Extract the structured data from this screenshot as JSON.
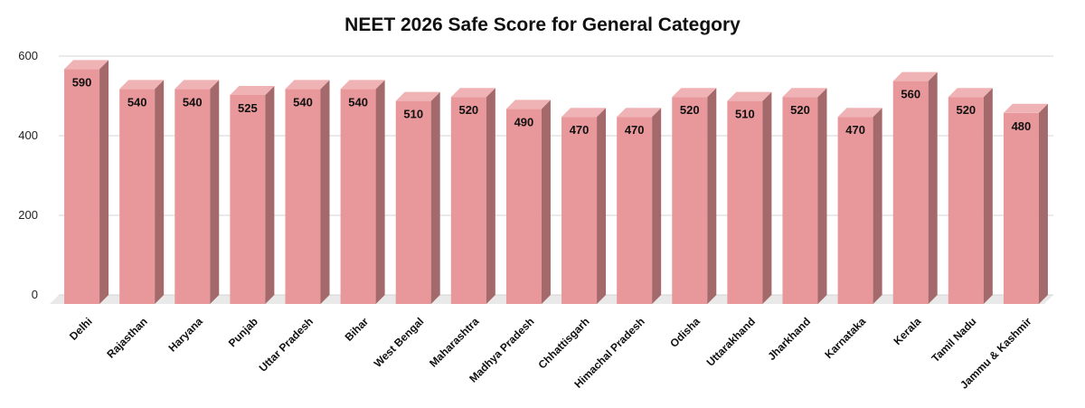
{
  "chart_data": {
    "type": "bar",
    "title": "NEET 2026 Safe Score for General Category",
    "xlabel": "",
    "ylabel": "",
    "ylim": [
      0,
      600
    ],
    "yticks": [
      0,
      200,
      400,
      600
    ],
    "grid": true,
    "legend": "none",
    "style": "3d",
    "categories": [
      "Delhi",
      "Rajasthan",
      "Haryana",
      "Punjab",
      "Uttar Pradesh",
      "Bihar",
      "West Bengal",
      "Maharashtra",
      "Madhya Pradesh",
      "Chhattisgarh",
      "Himachal Pradesh",
      "Odisha",
      "Uttarakhand",
      "Jharkhand",
      "Karnataka",
      "Kerala",
      "Tamil Nadu",
      "Jammu & Kashmir"
    ],
    "values": [
      590,
      540,
      540,
      525,
      540,
      540,
      510,
      520,
      490,
      470,
      470,
      520,
      510,
      520,
      470,
      560,
      520,
      480
    ],
    "colors": {
      "bar_front": "#e8979a",
      "bar_top": "#f0b3b5",
      "bar_side": "#a46a6b",
      "floor": "#e9e9e9",
      "grid": "#d4d4d4"
    }
  }
}
